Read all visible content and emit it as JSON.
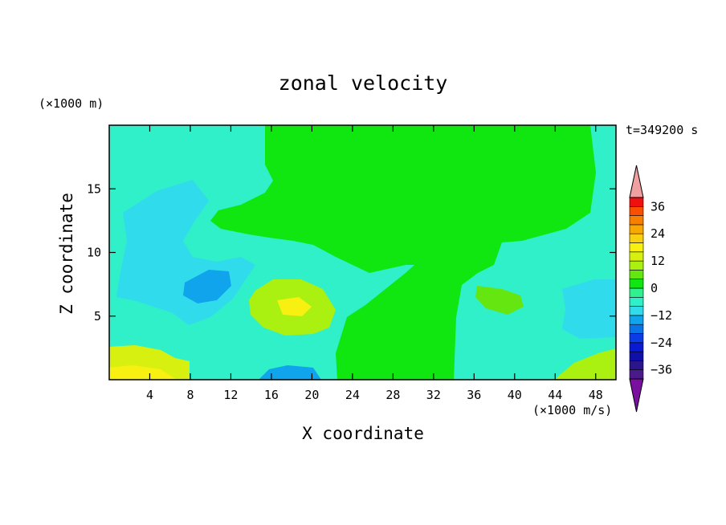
{
  "chart_data": {
    "type": "heatmap",
    "title": "zonal velocity",
    "xlabel": "X coordinate",
    "ylabel": "Z coordinate",
    "x_unit": "(×1000 m/s)",
    "y_unit": "(×1000 m)",
    "time_label": "t=349200 s",
    "xlim": [
      0,
      50
    ],
    "ylim": [
      0,
      20
    ],
    "x_ticks": [
      4,
      8,
      12,
      16,
      20,
      24,
      28,
      32,
      36,
      40,
      44,
      48
    ],
    "y_ticks": [
      5,
      10,
      15
    ],
    "colorbar": {
      "levels": [
        -40,
        -36,
        -32,
        -28,
        -24,
        -20,
        -16,
        -12,
        -8,
        -4,
        0,
        4,
        8,
        12,
        16,
        20,
        24,
        28,
        32,
        36,
        40
      ],
      "labels": [
        36,
        24,
        12,
        0,
        -12,
        -24,
        -36
      ],
      "colors": [
        "#4a1a8a",
        "#2a158a",
        "#1010a8",
        "#0a1ad0",
        "#0a3ce8",
        "#0a74e6",
        "#10a4ec",
        "#30dcec",
        "#2ff0c8",
        "#30f090",
        "#10e610",
        "#66e610",
        "#aaf010",
        "#d8f010",
        "#f8f010",
        "#f8d010",
        "#f8a800",
        "#f88000",
        "#f85000",
        "#f01010"
      ],
      "under_color": "#7a10a0",
      "over_color": "#f0a0a0"
    },
    "regions": [
      {
        "name": "background",
        "value": -6
      },
      {
        "name": "upper-core",
        "value": 2
      },
      {
        "name": "mid-left-cyan",
        "value": -10
      },
      {
        "name": "mid-left-core",
        "value": -14
      },
      {
        "name": "mid-positive-cell",
        "value": 8
      },
      {
        "name": "mid-positive-core",
        "value": 16
      },
      {
        "name": "surface-left-jet",
        "value": 12
      },
      {
        "name": "surface-left-core",
        "value": 16
      },
      {
        "name": "surface-negative",
        "value": -16
      },
      {
        "name": "right-positive-cell",
        "value": 6
      },
      {
        "name": "right-cyan-lobe",
        "value": -10
      },
      {
        "name": "surface-right-jet",
        "value": 10
      }
    ]
  }
}
